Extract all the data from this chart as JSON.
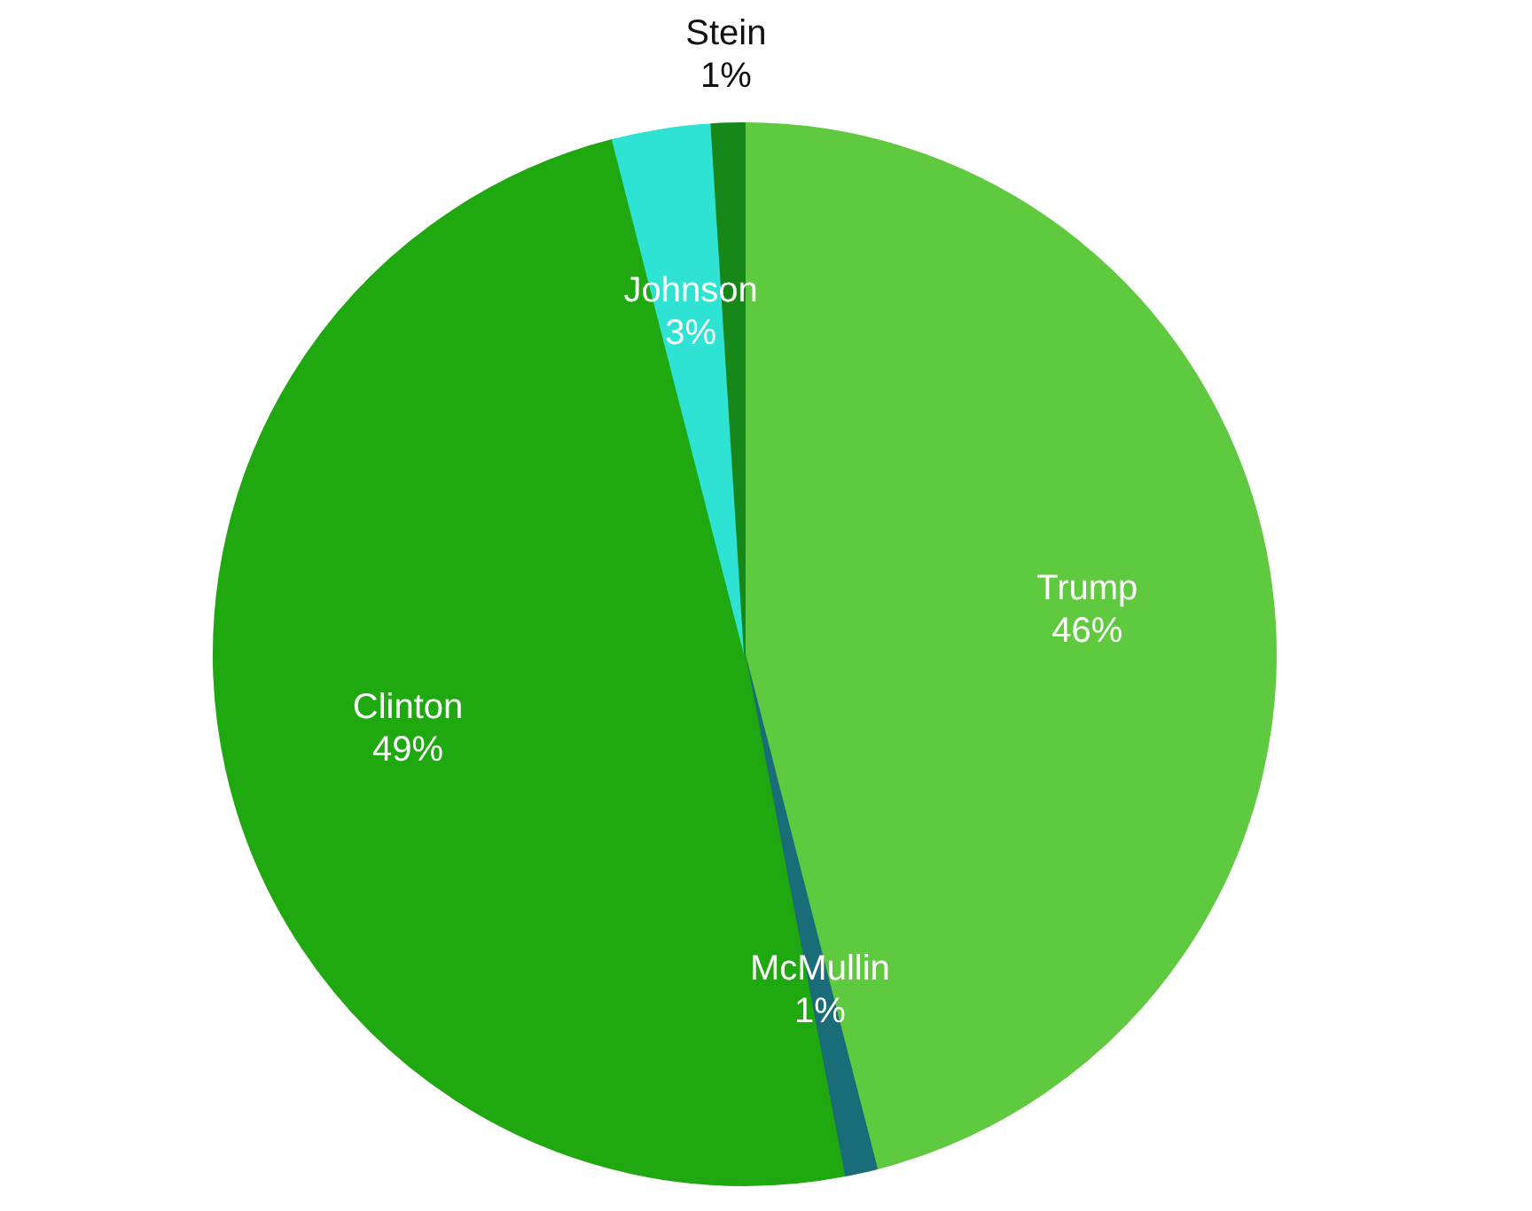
{
  "chart_data": {
    "type": "pie",
    "categories": [
      "Trump",
      "McMullin",
      "Clinton",
      "Johnson",
      "Stein"
    ],
    "values": [
      46,
      1,
      49,
      3,
      1
    ],
    "colors": [
      "#5fc93f",
      "#1a6d78",
      "#1fa80f",
      "#2ee3d3",
      "#17871a"
    ],
    "value_labels": [
      "46%",
      "1%",
      "49%",
      "3%",
      "1%"
    ],
    "legend": false
  }
}
